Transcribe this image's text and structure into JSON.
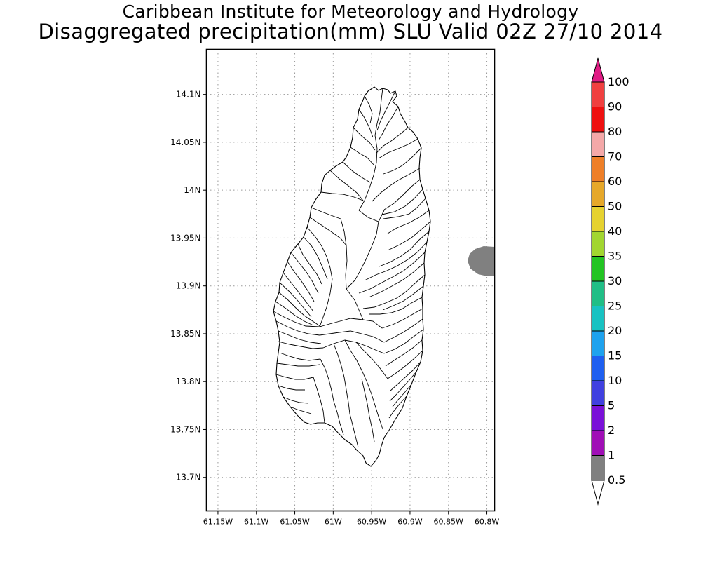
{
  "header": {
    "title_line1": "Caribbean Institute for Meteorology and Hydrology",
    "title_line2": "Disaggregated precipitation(mm) SLU Valid 02Z 27/10 2014"
  },
  "map": {
    "lat_labels": [
      "14.1N",
      "14.05N",
      "14N",
      "13.95N",
      "13.9N",
      "13.85N",
      "13.8N",
      "13.75N",
      "13.7N"
    ],
    "lon_labels": [
      "61.15W",
      "61.1W",
      "61.05W",
      "61W",
      "60.95W",
      "60.9W",
      "60.85W",
      "60.8W"
    ],
    "lat_values": [
      14.1,
      14.05,
      14.0,
      13.95,
      13.9,
      13.85,
      13.8,
      13.75,
      13.7
    ],
    "lon_values": [
      -61.15,
      -61.1,
      -61.05,
      -61.0,
      -60.95,
      -60.9,
      -60.85,
      -60.8
    ],
    "lat_range": [
      13.665,
      14.147
    ],
    "lon_range": [
      -61.165,
      -60.79
    ],
    "gridlines": "dotted",
    "land_fill": "#ffffff",
    "boundary_color": "#000000",
    "precip_area_color": "#808080",
    "precip_area_value_range": "0.5-1"
  },
  "colorbar": {
    "labels": [
      "100",
      "90",
      "80",
      "70",
      "60",
      "50",
      "40",
      "35",
      "30",
      "25",
      "20",
      "15",
      "10",
      "5",
      "2",
      "1",
      "0.5"
    ],
    "colors_top_to_bottom": [
      "#e01b84",
      "#f04040",
      "#ee1010",
      "#f4a8a8",
      "#ee7f28",
      "#e6a82a",
      "#e6d230",
      "#a2d630",
      "#22c422",
      "#20be86",
      "#18c2c2",
      "#1ea2ee",
      "#1e5ff0",
      "#4040e0",
      "#7a10d8",
      "#a00eb6",
      "#808080",
      "#ffffff"
    ]
  }
}
